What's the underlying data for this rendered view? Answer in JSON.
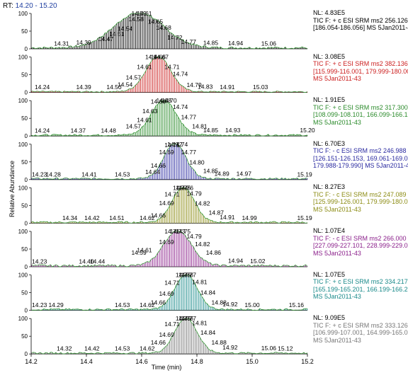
{
  "header": {
    "rt_prefix": "RT:",
    "rt_range": "14.20 - 15.20"
  },
  "axes": {
    "ylabel": "Relative Abundance",
    "xlabel": "Time (min)"
  },
  "panels": [
    {
      "color": "#000000",
      "ann": [
        "NL: 4.83E5",
        "TIC F: + c ESI SRM ms2 256.126",
        "[186.054-186.056]  MS 5Jan2011-43"
      ]
    },
    {
      "color": "#cc2020",
      "ann": [
        "NL: 3.08E5",
        "TIC F: + c ESI SRM ms2 382.136",
        "[115.999-116.001, 179.999-180.001]",
        "MS 5Jan2011-43"
      ]
    },
    {
      "color": "#2a8a2a",
      "ann": [
        "NL: 1.91E5",
        "TIC F: + c ESI SRM ms2 317.300",
        "[108.099-108.101, 166.099-166.101]",
        "MS 5Jan2011-43"
      ]
    },
    {
      "color": "#2a2aa0",
      "ann": [
        "NL: 6.70E3",
        "TIC F: - c ESI SRM ms2 246.988",
        "[126.151-126.153, 169.061-169.063,",
        "179.988-179.990]  MS 5Jan2011-43"
      ]
    },
    {
      "color": "#8c8c14",
      "ann": [
        "NL: 8.27E3",
        "TIC F: - c ESI SRM ms2 247.089",
        "[125.999-126.001, 179.999-180.001]",
        "MS 5Jan2011-43"
      ]
    },
    {
      "color": "#8a1e8a",
      "ann": [
        "NL: 1.07E4",
        "TIC F: - c ESI SRM ms2 266.000",
        "[227.099-227.101, 228.999-229.001]",
        "MS 5Jan2011-43"
      ]
    },
    {
      "color": "#1a8a8a",
      "ann": [
        "NL: 1.07E5",
        "TIC F: + c ESI SRM ms2 334.217",
        "[165.199-165.201, 166.199-166.201]",
        "MS 5Jan2011-43"
      ]
    },
    {
      "color": "#777777",
      "ann": [
        "NL: 9.09E5",
        "TIC F: + c ESI SRM ms2 333.126",
        "[106.999-107.001, 164.999-165.001]",
        "MS 5Jan2011-43"
      ]
    }
  ],
  "chart_data": {
    "type": "line",
    "title": "",
    "xlabel": "Time (min)",
    "ylabel": "Relative Abundance",
    "xlim": [
      14.2,
      15.2
    ],
    "ylim": [
      0,
      100
    ],
    "x_ticks": [
      "14.2",
      "14.4",
      "14.6",
      "14.8",
      "15.0",
      "15.2"
    ],
    "y_ticks": [
      "0",
      "50",
      "100"
    ],
    "series": [
      {
        "peak_rt": 14.59,
        "width": 0.09,
        "noise": 6,
        "labels": [
          [
            14.31,
            3
          ],
          [
            14.39,
            6
          ],
          [
            14.47,
            16
          ],
          [
            14.51,
            30
          ],
          [
            14.54,
            45
          ],
          [
            14.58,
            72
          ],
          [
            14.59,
            100
          ],
          [
            14.61,
            92
          ],
          [
            14.65,
            65
          ],
          [
            14.68,
            48
          ],
          [
            14.72,
            20
          ],
          [
            14.77,
            8
          ],
          [
            14.85,
            5
          ],
          [
            14.94,
            4
          ],
          [
            15.06,
            3
          ]
        ]
      },
      {
        "peak_rt": 14.66,
        "width": 0.045,
        "noise": 4,
        "labels": [
          [
            14.24,
            3
          ],
          [
            14.39,
            3
          ],
          [
            14.5,
            3
          ],
          [
            14.54,
            10
          ],
          [
            14.57,
            30
          ],
          [
            14.61,
            60
          ],
          [
            14.64,
            90
          ],
          [
            14.66,
            100
          ],
          [
            14.67,
            92
          ],
          [
            14.71,
            60
          ],
          [
            14.74,
            40
          ],
          [
            14.79,
            9
          ],
          [
            14.83,
            4
          ],
          [
            14.91,
            3
          ],
          [
            15.03,
            3
          ]
        ]
      },
      {
        "peak_rt": 14.68,
        "width": 0.045,
        "noise": 5,
        "labels": [
          [
            14.24,
            3
          ],
          [
            14.37,
            3
          ],
          [
            14.48,
            3
          ],
          [
            14.57,
            15
          ],
          [
            14.61,
            33
          ],
          [
            14.63,
            58
          ],
          [
            14.66,
            85
          ],
          [
            14.68,
            100
          ],
          [
            14.7,
            90
          ],
          [
            14.74,
            70
          ],
          [
            14.77,
            41
          ],
          [
            14.81,
            15
          ],
          [
            14.85,
            4
          ],
          [
            14.93,
            4
          ],
          [
            15.2,
            4
          ]
        ]
      },
      {
        "peak_rt": 14.72,
        "width": 0.04,
        "noise": 5,
        "labels": [
          [
            14.23,
            3
          ],
          [
            14.28,
            3
          ],
          [
            14.41,
            3
          ],
          [
            14.53,
            3
          ],
          [
            14.64,
            10
          ],
          [
            14.66,
            28
          ],
          [
            14.69,
            66
          ],
          [
            14.71,
            86
          ],
          [
            14.72,
            100
          ],
          [
            14.74,
            88
          ],
          [
            14.77,
            66
          ],
          [
            14.8,
            37
          ],
          [
            14.85,
            13
          ],
          [
            14.89,
            5
          ],
          [
            14.97,
            5
          ],
          [
            15.19,
            3
          ]
        ]
      },
      {
        "peak_rt": 14.75,
        "width": 0.04,
        "noise": 5,
        "labels": [
          [
            14.34,
            3
          ],
          [
            14.42,
            3
          ],
          [
            14.51,
            3
          ],
          [
            14.62,
            3
          ],
          [
            14.66,
            10
          ],
          [
            14.69,
            45
          ],
          [
            14.71,
            70
          ],
          [
            14.74,
            100
          ],
          [
            14.75,
            100
          ],
          [
            14.76,
            95
          ],
          [
            14.79,
            72
          ],
          [
            14.82,
            44
          ],
          [
            14.87,
            18
          ],
          [
            14.91,
            5
          ],
          [
            14.99,
            3
          ],
          [
            15.19,
            3
          ]
        ]
      },
      {
        "peak_rt": 14.73,
        "width": 0.05,
        "noise": 6,
        "labels": [
          [
            14.23,
            3
          ],
          [
            14.4,
            3
          ],
          [
            14.44,
            3
          ],
          [
            14.59,
            28
          ],
          [
            14.61,
            35
          ],
          [
            14.69,
            58
          ],
          [
            14.71,
            90
          ],
          [
            14.73,
            100
          ],
          [
            14.75,
            92
          ],
          [
            14.79,
            74
          ],
          [
            14.82,
            52
          ],
          [
            14.86,
            28
          ],
          [
            14.94,
            5
          ],
          [
            15.02,
            4
          ]
        ]
      },
      {
        "peak_rt": 14.76,
        "width": 0.04,
        "noise": 5,
        "labels": [
          [
            14.23,
            3
          ],
          [
            14.29,
            3
          ],
          [
            14.53,
            3
          ],
          [
            14.62,
            3
          ],
          [
            14.66,
            10
          ],
          [
            14.69,
            35
          ],
          [
            14.71,
            66
          ],
          [
            14.75,
            100
          ],
          [
            14.76,
            100
          ],
          [
            14.77,
            95
          ],
          [
            14.81,
            68
          ],
          [
            14.84,
            38
          ],
          [
            14.88,
            10
          ],
          [
            14.92,
            5
          ],
          [
            15.0,
            3
          ],
          [
            15.16,
            3
          ]
        ]
      },
      {
        "peak_rt": 14.76,
        "width": 0.04,
        "noise": 5,
        "labels": [
          [
            14.32,
            3
          ],
          [
            14.42,
            3
          ],
          [
            14.53,
            3
          ],
          [
            14.62,
            3
          ],
          [
            14.66,
            20
          ],
          [
            14.69,
            42
          ],
          [
            14.71,
            72
          ],
          [
            14.75,
            100
          ],
          [
            14.76,
            100
          ],
          [
            14.77,
            95
          ],
          [
            14.81,
            75
          ],
          [
            14.84,
            48
          ],
          [
            14.88,
            20
          ],
          [
            14.92,
            6
          ],
          [
            15.06,
            4
          ],
          [
            15.12,
            3
          ]
        ]
      }
    ]
  }
}
